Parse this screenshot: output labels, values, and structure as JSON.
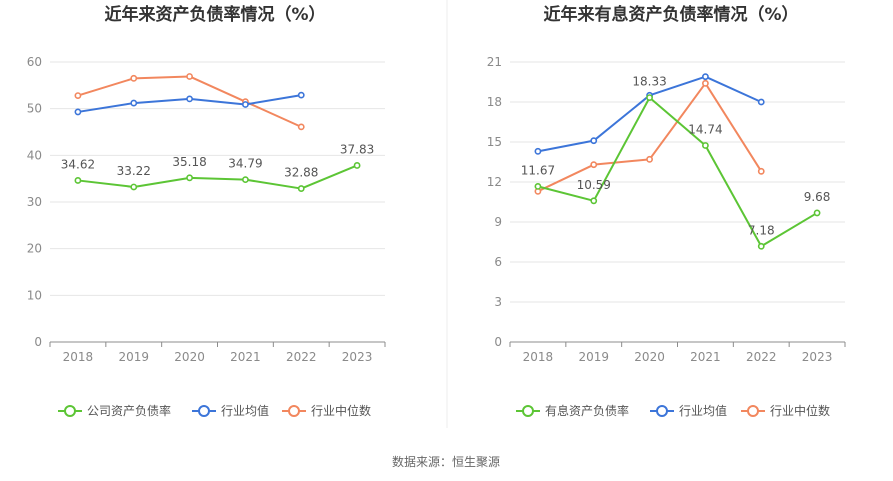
{
  "source": "数据来源：恒生聚源",
  "chart_data": [
    {
      "type": "line",
      "title": "近年来资产负债率情况（%）",
      "categories": [
        "2018",
        "2019",
        "2020",
        "2021",
        "2022",
        "2023"
      ],
      "ylim": [
        0,
        60
      ],
      "yticks": [
        0,
        10,
        20,
        30,
        40,
        50,
        60
      ],
      "grid": true,
      "legend_position": "bottom",
      "series": [
        {
          "name": "公司资产负债率",
          "color": "#5cc535",
          "values": [
            34.62,
            33.22,
            35.18,
            34.79,
            32.88,
            37.83
          ],
          "labels": [
            "34.62",
            "33.22",
            "35.18",
            "34.79",
            "32.88",
            "37.83"
          ]
        },
        {
          "name": "行业均值",
          "color": "#3c75d9",
          "values": [
            49.3,
            51.2,
            52.1,
            50.9,
            52.9,
            null
          ]
        },
        {
          "name": "行业中位数",
          "color": "#f2875e",
          "values": [
            52.8,
            56.5,
            56.9,
            51.5,
            46.1,
            null
          ]
        }
      ]
    },
    {
      "type": "line",
      "title": "近年来有息资产负债率情况（%）",
      "categories": [
        "2018",
        "2019",
        "2020",
        "2021",
        "2022",
        "2023"
      ],
      "ylim": [
        0,
        21
      ],
      "yticks": [
        0,
        3,
        6,
        9,
        12,
        15,
        18,
        21
      ],
      "grid": true,
      "legend_position": "bottom",
      "series": [
        {
          "name": "有息资产负债率",
          "color": "#5cc535",
          "values": [
            11.67,
            10.59,
            18.33,
            14.74,
            7.18,
            9.68
          ],
          "labels": [
            "11.67",
            "10.59",
            "18.33",
            "14.74",
            "7.18",
            "9.68"
          ]
        },
        {
          "name": "行业均值",
          "color": "#3c75d9",
          "values": [
            14.3,
            15.1,
            18.5,
            19.9,
            18.0,
            null
          ]
        },
        {
          "name": "行业中位数",
          "color": "#f2875e",
          "values": [
            11.3,
            13.3,
            13.7,
            19.4,
            12.8,
            null
          ]
        }
      ]
    }
  ]
}
